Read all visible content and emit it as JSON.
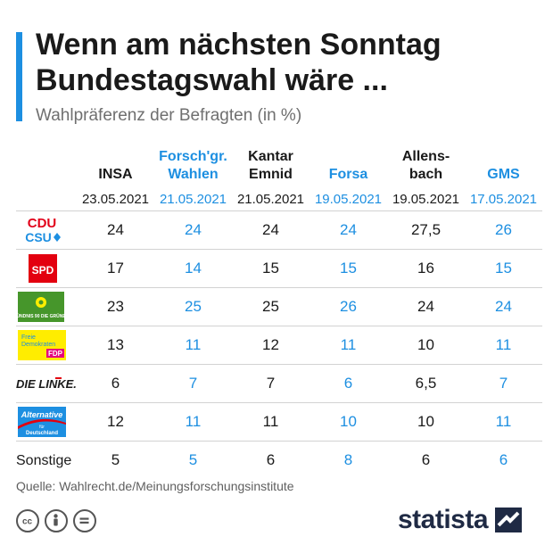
{
  "header": {
    "title": "Wenn am nächsten Sonntag Bundestagswahl wäre ...",
    "subtitle": "Wahlpräferenz der Befragten (in %)"
  },
  "chart_data": {
    "type": "table",
    "title": "Wenn am nächsten Sonntag Bundestagswahl wäre ...",
    "subtitle": "Wahlpräferenz der Befragten (in %)",
    "columns": [
      {
        "name": "INSA",
        "date": "23.05.2021",
        "color": "#1a1a1a"
      },
      {
        "name": "Forsch'gr. Wahlen",
        "date": "21.05.2021",
        "color": "#1d8fe1"
      },
      {
        "name": "Kantar Emnid",
        "date": "21.05.2021",
        "color": "#1a1a1a"
      },
      {
        "name": "Forsa",
        "date": "19.05.2021",
        "color": "#1d8fe1"
      },
      {
        "name": "Allens-bach",
        "date": "19.05.2021",
        "color": "#1a1a1a"
      },
      {
        "name": "GMS",
        "date": "17.05.2021",
        "color": "#1d8fe1"
      }
    ],
    "rows": [
      {
        "party": "CDU/CSU",
        "logo": "cdu-csu-logo",
        "values": [
          "24",
          "24",
          "24",
          "24",
          "27,5",
          "26"
        ]
      },
      {
        "party": "SPD",
        "logo": "spd-logo",
        "values": [
          "17",
          "14",
          "15",
          "15",
          "16",
          "15"
        ]
      },
      {
        "party": "Bündnis 90/Die Grünen",
        "logo": "gruene-logo",
        "values": [
          "23",
          "25",
          "25",
          "26",
          "24",
          "24"
        ]
      },
      {
        "party": "FDP",
        "logo": "fdp-logo",
        "values": [
          "13",
          "11",
          "12",
          "11",
          "10",
          "11"
        ]
      },
      {
        "party": "Die Linke",
        "logo": "linke-logo",
        "values": [
          "6",
          "7",
          "7",
          "6",
          "6,5",
          "7"
        ]
      },
      {
        "party": "AfD",
        "logo": "afd-logo",
        "values": [
          "12",
          "11",
          "11",
          "10",
          "10",
          "11"
        ]
      },
      {
        "party": "Sonstige",
        "logo": "",
        "label": "Sonstige",
        "values": [
          "5",
          "5",
          "6",
          "8",
          "6",
          "6"
        ]
      }
    ]
  },
  "logos": {
    "cdu": "CDU",
    "csu": "CSU",
    "spd": "SPD",
    "gruene": "BÜNDNIS 90 DIE GRÜNEN",
    "fdp_top": "Freie",
    "fdp_mid": "Demokraten",
    "fdp_bottom": "FDP",
    "linke": "DIE LINKE.",
    "afd_top": "Alternative",
    "afd_mid": "für",
    "afd_bottom": "Deutschland"
  },
  "footer": {
    "source": "Quelle: Wahlrecht.de/Meinungsforschungsinstitute",
    "brand": "statista",
    "license_icons": [
      "cc-icon",
      "person-icon",
      "equals-icon"
    ]
  },
  "colors": {
    "accent": "#1d8fe1",
    "text": "#1a1a1a",
    "divider": "#d2d2d2",
    "brand": "#1f2a44"
  }
}
